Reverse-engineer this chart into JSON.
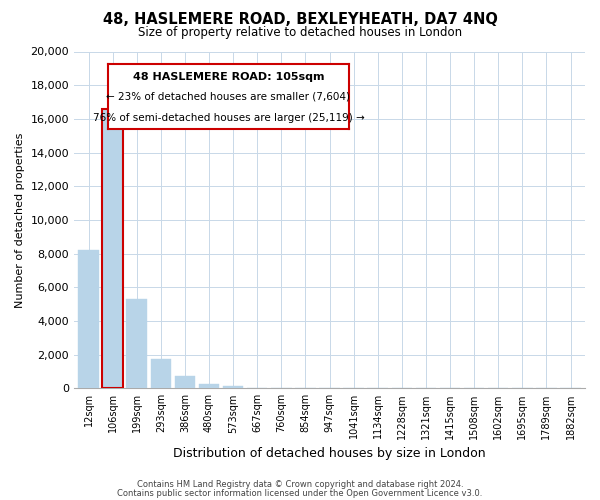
{
  "title": "48, HASLEMERE ROAD, BEXLEYHEATH, DA7 4NQ",
  "subtitle": "Size of property relative to detached houses in London",
  "xlabel": "Distribution of detached houses by size in London",
  "ylabel": "Number of detached properties",
  "bar_labels": [
    "12sqm",
    "106sqm",
    "199sqm",
    "293sqm",
    "386sqm",
    "480sqm",
    "573sqm",
    "667sqm",
    "760sqm",
    "854sqm",
    "947sqm",
    "1041sqm",
    "1134sqm",
    "1228sqm",
    "1321sqm",
    "1415sqm",
    "1508sqm",
    "1602sqm",
    "1695sqm",
    "1789sqm",
    "1882sqm"
  ],
  "bar_values": [
    8200,
    16600,
    5300,
    1750,
    750,
    270,
    160,
    0,
    0,
    0,
    0,
    0,
    0,
    0,
    0,
    0,
    0,
    0,
    0,
    0,
    0
  ],
  "bar_color": "#b8d4e8",
  "highlight_bar_index": 1,
  "highlight_bar_edge_color": "#cc0000",
  "ylim": [
    0,
    20000
  ],
  "yticks": [
    0,
    2000,
    4000,
    6000,
    8000,
    10000,
    12000,
    14000,
    16000,
    18000,
    20000
  ],
  "annotation_title": "48 HASLEMERE ROAD: 105sqm",
  "annotation_line1": "← 23% of detached houses are smaller (7,604)",
  "annotation_line2": "76% of semi-detached houses are larger (25,119) →",
  "annotation_box_edge": "#cc0000",
  "footer_line1": "Contains HM Land Registry data © Crown copyright and database right 2024.",
  "footer_line2": "Contains public sector information licensed under the Open Government Licence v3.0.",
  "background_color": "#ffffff",
  "grid_color": "#c8d8e8"
}
